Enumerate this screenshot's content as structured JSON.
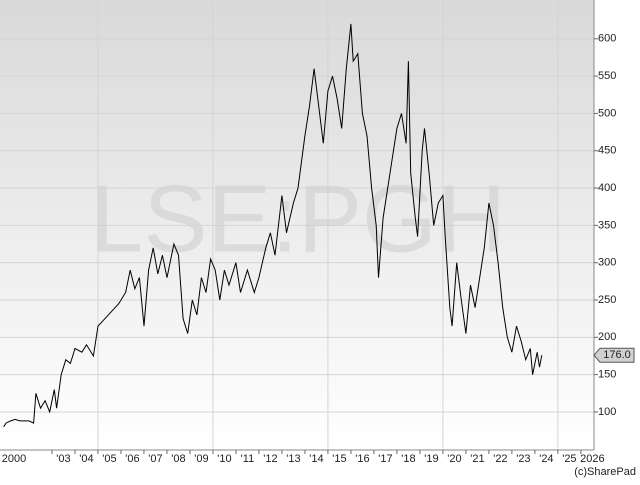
{
  "chart_data": {
    "type": "line",
    "title": "LSE:PGH",
    "source": "(c)SharePad",
    "color": "#000000",
    "x": [
      2000.9,
      2001.0,
      2001.2,
      2001.4,
      2001.6,
      2002.0,
      2002.2,
      2002.3,
      2002.5,
      2002.7,
      2002.9,
      2003.1,
      2003.2,
      2003.4,
      2003.6,
      2003.8,
      2004.0,
      2004.3,
      2004.5,
      2004.8,
      2005.0,
      2005.3,
      2005.6,
      2005.9,
      2006.2,
      2006.4,
      2006.6,
      2006.8,
      2007.0,
      2007.2,
      2007.4,
      2007.6,
      2007.8,
      2008.0,
      2008.3,
      2008.5,
      2008.7,
      2008.9,
      2009.1,
      2009.3,
      2009.5,
      2009.7,
      2009.9,
      2010.1,
      2010.3,
      2010.5,
      2010.7,
      2011.0,
      2011.2,
      2011.5,
      2011.8,
      2012.0,
      2012.3,
      2012.5,
      2012.7,
      2013.0,
      2013.2,
      2013.5,
      2013.7,
      2014.0,
      2014.2,
      2014.4,
      2014.6,
      2014.8,
      2015.0,
      2015.2,
      2015.4,
      2015.6,
      2015.8,
      2016.0,
      2016.1,
      2016.3,
      2016.5,
      2016.7,
      2016.9,
      2017.1,
      2017.2,
      2017.4,
      2017.6,
      2017.8,
      2018.0,
      2018.2,
      2018.4,
      2018.5,
      2018.6,
      2018.8,
      2018.9,
      2019.1,
      2019.2,
      2019.4,
      2019.6,
      2019.8,
      2020.0,
      2020.1,
      2020.3,
      2020.4,
      2020.6,
      2020.8,
      2021.0,
      2021.2,
      2021.4,
      2021.6,
      2021.8,
      2022.0,
      2022.2,
      2022.4,
      2022.6,
      2022.8,
      2023.0,
      2023.2,
      2023.4,
      2023.6,
      2023.8,
      2023.9,
      2024.1,
      2024.2,
      2024.3
    ],
    "values": [
      80,
      85,
      88,
      90,
      88,
      88,
      85,
      125,
      105,
      115,
      100,
      130,
      105,
      150,
      170,
      165,
      185,
      180,
      190,
      175,
      215,
      225,
      235,
      245,
      260,
      290,
      265,
      280,
      215,
      290,
      320,
      285,
      310,
      280,
      325,
      310,
      225,
      205,
      250,
      230,
      280,
      260,
      305,
      290,
      250,
      290,
      270,
      300,
      260,
      290,
      260,
      280,
      320,
      340,
      310,
      390,
      340,
      380,
      400,
      470,
      510,
      560,
      510,
      460,
      530,
      550,
      520,
      480,
      560,
      620,
      570,
      580,
      500,
      470,
      400,
      350,
      280,
      360,
      400,
      440,
      480,
      500,
      460,
      570,
      420,
      360,
      335,
      450,
      480,
      420,
      350,
      380,
      390,
      335,
      240,
      215,
      300,
      250,
      205,
      270,
      240,
      280,
      320,
      380,
      350,
      300,
      240,
      200,
      180,
      215,
      195,
      170,
      185,
      150,
      180,
      160,
      176
    ],
    "last_price": {
      "value": 176,
      "label": "176.0"
    },
    "xlim": [
      2000.74,
      2026.57
    ],
    "ylim": [
      49,
      652
    ],
    "yticks": [
      100,
      150,
      200,
      250,
      300,
      350,
      400,
      450,
      500,
      550,
      600
    ],
    "xticks": [
      {
        "value": 2000,
        "label": "2000"
      },
      {
        "value": 2003,
        "label": "'03"
      },
      {
        "value": 2004,
        "label": "'04"
      },
      {
        "value": 2005,
        "label": "'05"
      },
      {
        "value": 2006,
        "label": "'06"
      },
      {
        "value": 2007,
        "label": "'07"
      },
      {
        "value": 2008,
        "label": "'08"
      },
      {
        "value": 2009,
        "label": "'09"
      },
      {
        "value": 2010,
        "label": "'10"
      },
      {
        "value": 2011,
        "label": "'11"
      },
      {
        "value": 2012,
        "label": "'12"
      },
      {
        "value": 2013,
        "label": "'13"
      },
      {
        "value": 2014,
        "label": "'14"
      },
      {
        "value": 2015,
        "label": "'15"
      },
      {
        "value": 2016,
        "label": "'16"
      },
      {
        "value": 2017,
        "label": "'17"
      },
      {
        "value": 2018,
        "label": "'18"
      },
      {
        "value": 2019,
        "label": "'19"
      },
      {
        "value": 2020,
        "label": "'20"
      },
      {
        "value": 2021,
        "label": "'21"
      },
      {
        "value": 2022,
        "label": "'22"
      },
      {
        "value": 2023,
        "label": "'23"
      },
      {
        "value": 2024,
        "label": "'24"
      },
      {
        "value": 2025,
        "label": "'25"
      },
      {
        "value": 2026,
        "label": "2026"
      }
    ],
    "xgrid": [
      2005,
      2010,
      2015,
      2020,
      2025
    ],
    "grid": true
  }
}
